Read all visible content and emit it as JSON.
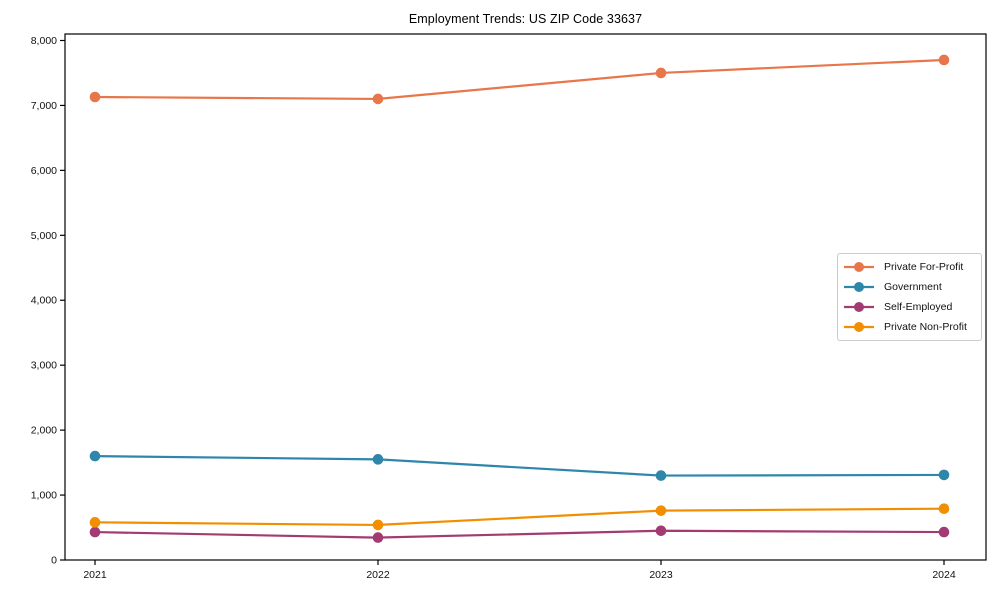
{
  "chart_data": {
    "type": "line",
    "title": "Employment Trends: US ZIP Code 33637",
    "xlabel": "",
    "ylabel": "",
    "x": [
      "2021",
      "2022",
      "2023",
      "2024"
    ],
    "series": [
      {
        "name": "Private For-Profit",
        "color": "#E8764B",
        "values": [
          7130,
          7100,
          7500,
          7700
        ]
      },
      {
        "name": "Government",
        "color": "#2E86AB",
        "values": [
          1600,
          1550,
          1300,
          1310
        ]
      },
      {
        "name": "Self-Employed",
        "color": "#A23B72",
        "values": [
          430,
          345,
          450,
          430
        ]
      },
      {
        "name": "Private Non-Profit",
        "color": "#F18F01",
        "values": [
          580,
          540,
          760,
          790
        ]
      }
    ],
    "ylim": [
      0,
      8100
    ],
    "yticks": [
      0,
      1000,
      2000,
      3000,
      4000,
      5000,
      6000,
      7000,
      8000
    ],
    "ytick_labels": [
      "0",
      "1,000",
      "2,000",
      "3,000",
      "4,000",
      "5,000",
      "6,000",
      "7,000",
      "8,000"
    ],
    "grid": false,
    "marker": "circle",
    "legend_position": "center right",
    "axis_color": "#000000"
  }
}
